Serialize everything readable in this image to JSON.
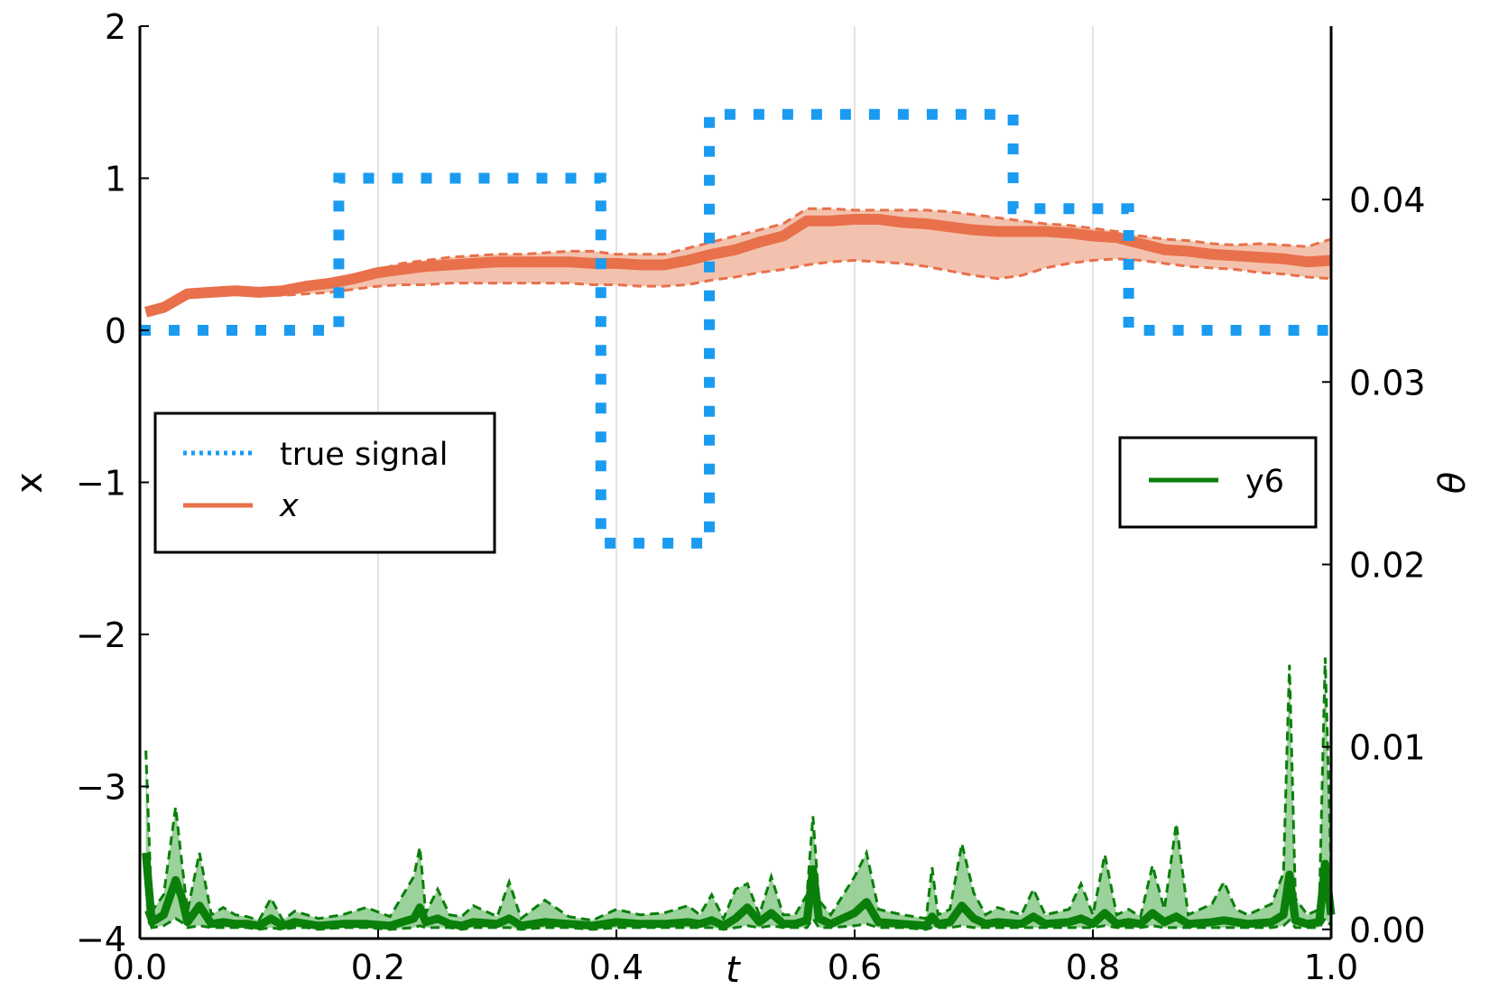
{
  "chart_data": {
    "type": "line",
    "xlabel": "t",
    "ylabel_left": "x",
    "ylabel_right": "θ",
    "xlim": [
      0.0,
      1.0
    ],
    "ylim_left": [
      -4,
      2
    ],
    "ylim_right": [
      -0.0005,
      0.0495
    ],
    "x_ticks": [
      "0.0",
      "0.2",
      "0.4",
      "0.6",
      "0.8",
      "1.0"
    ],
    "y_left_ticks": [
      "2",
      "1",
      "0",
      "−1",
      "−2",
      "−3",
      "−4"
    ],
    "y_right_ticks": [
      "0.04",
      "0.03",
      "0.02",
      "0.01",
      "0.00"
    ],
    "grid": "vertical",
    "colors": {
      "true_signal": "#1a9bf0",
      "x": "#e8704a",
      "x_band": "#f3c2ae",
      "y6": "#0a7f0a",
      "y6_band": "#8ac98a"
    },
    "legend_left": {
      "placement": "middle-left",
      "entries": [
        "true signal",
        "x"
      ]
    },
    "legend_right": {
      "placement": "middle-right",
      "entries": [
        "y6"
      ]
    },
    "true_signal": {
      "name": "true signal",
      "style": "dotted",
      "x": [
        0.0,
        0.167,
        0.167,
        0.387,
        0.387,
        0.478,
        0.478,
        0.733,
        0.733,
        0.83,
        0.83,
        1.0
      ],
      "y": [
        0,
        0,
        1,
        1,
        -1.4,
        -1.4,
        1.42,
        1.42,
        0.8,
        0.8,
        0,
        0
      ]
    },
    "x_series": {
      "name": "x",
      "x": [
        0.005,
        0.02,
        0.04,
        0.06,
        0.08,
        0.1,
        0.12,
        0.14,
        0.16,
        0.18,
        0.2,
        0.22,
        0.24,
        0.26,
        0.28,
        0.3,
        0.32,
        0.34,
        0.36,
        0.38,
        0.4,
        0.42,
        0.44,
        0.46,
        0.48,
        0.5,
        0.52,
        0.54,
        0.56,
        0.58,
        0.6,
        0.62,
        0.64,
        0.66,
        0.68,
        0.7,
        0.72,
        0.74,
        0.76,
        0.78,
        0.8,
        0.82,
        0.84,
        0.86,
        0.88,
        0.9,
        0.92,
        0.94,
        0.96,
        0.98,
        1.0
      ],
      "mean": [
        0.12,
        0.15,
        0.24,
        0.25,
        0.26,
        0.25,
        0.26,
        0.29,
        0.31,
        0.34,
        0.38,
        0.4,
        0.42,
        0.43,
        0.44,
        0.45,
        0.45,
        0.45,
        0.45,
        0.44,
        0.44,
        0.43,
        0.43,
        0.46,
        0.5,
        0.53,
        0.58,
        0.62,
        0.72,
        0.72,
        0.73,
        0.73,
        0.71,
        0.7,
        0.68,
        0.66,
        0.65,
        0.65,
        0.65,
        0.64,
        0.62,
        0.61,
        0.57,
        0.53,
        0.52,
        0.5,
        0.49,
        0.48,
        0.47,
        0.45,
        0.46
      ],
      "upper": [
        0.12,
        0.15,
        0.24,
        0.25,
        0.26,
        0.25,
        0.26,
        0.29,
        0.31,
        0.35,
        0.4,
        0.44,
        0.46,
        0.48,
        0.49,
        0.5,
        0.5,
        0.51,
        0.52,
        0.52,
        0.5,
        0.5,
        0.5,
        0.54,
        0.58,
        0.62,
        0.66,
        0.7,
        0.8,
        0.8,
        0.79,
        0.79,
        0.79,
        0.79,
        0.78,
        0.76,
        0.74,
        0.72,
        0.7,
        0.69,
        0.67,
        0.65,
        0.62,
        0.6,
        0.59,
        0.57,
        0.56,
        0.57,
        0.56,
        0.55,
        0.6
      ],
      "lower": [
        0.12,
        0.15,
        0.23,
        0.24,
        0.24,
        0.23,
        0.23,
        0.24,
        0.25,
        0.27,
        0.29,
        0.3,
        0.3,
        0.31,
        0.31,
        0.31,
        0.31,
        0.31,
        0.31,
        0.3,
        0.3,
        0.29,
        0.29,
        0.3,
        0.33,
        0.35,
        0.38,
        0.4,
        0.43,
        0.45,
        0.46,
        0.45,
        0.44,
        0.42,
        0.39,
        0.36,
        0.34,
        0.36,
        0.41,
        0.44,
        0.46,
        0.47,
        0.46,
        0.44,
        0.42,
        0.41,
        0.4,
        0.38,
        0.37,
        0.35,
        0.34
      ]
    },
    "y6_series": {
      "name": "y6",
      "axis": "right",
      "x": [
        0.005,
        0.01,
        0.02,
        0.03,
        0.035,
        0.04,
        0.05,
        0.06,
        0.07,
        0.08,
        0.09,
        0.1,
        0.11,
        0.12,
        0.13,
        0.14,
        0.15,
        0.17,
        0.19,
        0.21,
        0.23,
        0.235,
        0.24,
        0.25,
        0.26,
        0.27,
        0.28,
        0.3,
        0.31,
        0.32,
        0.34,
        0.36,
        0.38,
        0.4,
        0.42,
        0.44,
        0.46,
        0.47,
        0.48,
        0.49,
        0.5,
        0.51,
        0.52,
        0.53,
        0.54,
        0.55,
        0.56,
        0.565,
        0.57,
        0.58,
        0.6,
        0.61,
        0.62,
        0.64,
        0.66,
        0.665,
        0.67,
        0.68,
        0.69,
        0.7,
        0.71,
        0.72,
        0.74,
        0.75,
        0.76,
        0.78,
        0.79,
        0.8,
        0.81,
        0.82,
        0.83,
        0.84,
        0.85,
        0.86,
        0.87,
        0.88,
        0.9,
        0.91,
        0.92,
        0.93,
        0.95,
        0.96,
        0.965,
        0.97,
        0.98,
        0.99,
        0.995,
        1.0
      ],
      "mean": [
        0.0042,
        0.0004,
        0.0008,
        0.0027,
        0.0018,
        0.0004,
        0.0013,
        0.0003,
        0.0004,
        0.0003,
        0.0003,
        0.0002,
        0.0006,
        0.0002,
        0.0004,
        0.0003,
        0.0002,
        0.0003,
        0.0003,
        0.0002,
        0.0006,
        0.0012,
        0.0004,
        0.0006,
        0.0003,
        0.0002,
        0.0004,
        0.0003,
        0.0006,
        0.0002,
        0.0004,
        0.0003,
        0.0002,
        0.0004,
        0.0003,
        0.0003,
        0.0004,
        0.0003,
        0.0005,
        0.0002,
        0.0006,
        0.0012,
        0.0004,
        0.0009,
        0.0003,
        0.0003,
        0.0005,
        0.0033,
        0.0006,
        0.0003,
        0.0009,
        0.0015,
        0.0004,
        0.0003,
        0.0002,
        0.0007,
        0.0003,
        0.0004,
        0.0013,
        0.0006,
        0.0003,
        0.0004,
        0.0003,
        0.0007,
        0.0003,
        0.0004,
        0.0006,
        0.0003,
        0.0009,
        0.0003,
        0.0004,
        0.0003,
        0.0009,
        0.0004,
        0.0007,
        0.0003,
        0.0004,
        0.0005,
        0.0004,
        0.0003,
        0.0004,
        0.0008,
        0.003,
        0.0005,
        0.0003,
        0.0004,
        0.0036,
        0.0008
      ],
      "upper": [
        0.0098,
        0.001,
        0.0019,
        0.0067,
        0.0038,
        0.001,
        0.0042,
        0.0008,
        0.0012,
        0.0008,
        0.0007,
        0.0005,
        0.0017,
        0.0005,
        0.001,
        0.0008,
        0.0006,
        0.0008,
        0.0012,
        0.0007,
        0.0029,
        0.0045,
        0.0009,
        0.0022,
        0.0008,
        0.0007,
        0.0013,
        0.0007,
        0.0026,
        0.0006,
        0.0016,
        0.0007,
        0.0005,
        0.0011,
        0.0008,
        0.0009,
        0.0013,
        0.0008,
        0.0019,
        0.0006,
        0.0022,
        0.0025,
        0.0008,
        0.0029,
        0.0008,
        0.0008,
        0.0019,
        0.0062,
        0.0016,
        0.0008,
        0.0029,
        0.0042,
        0.0011,
        0.0008,
        0.0006,
        0.0034,
        0.0008,
        0.0011,
        0.0047,
        0.002,
        0.0008,
        0.0012,
        0.0008,
        0.0022,
        0.0008,
        0.0011,
        0.0025,
        0.0008,
        0.0041,
        0.0008,
        0.0011,
        0.0007,
        0.0035,
        0.0011,
        0.0058,
        0.0008,
        0.0014,
        0.0026,
        0.0011,
        0.0008,
        0.0014,
        0.0031,
        0.0145,
        0.0017,
        0.0008,
        0.0011,
        0.0149,
        0.003
      ],
      "lower": [
        0.001,
        0.0001,
        0.0002,
        0.0006,
        0.0004,
        0.0001,
        0.0002,
        0.0001,
        0.0001,
        0.0001,
        0.0001,
        0.0,
        0.0001,
        0.0,
        0.0001,
        0.0001,
        0.0,
        0.0001,
        0.0001,
        0.0,
        0.0001,
        0.0002,
        0.0001,
        0.0001,
        0.0001,
        0.0,
        0.0001,
        0.0001,
        0.0001,
        0.0,
        0.0001,
        0.0001,
        0.0,
        0.0001,
        0.0001,
        0.0001,
        0.0001,
        0.0001,
        0.0001,
        0.0,
        0.0001,
        0.0002,
        0.0001,
        0.0002,
        0.0001,
        0.0001,
        0.0001,
        0.0006,
        0.0001,
        0.0001,
        0.0002,
        0.0003,
        0.0001,
        0.0001,
        0.0,
        0.0001,
        0.0001,
        0.0001,
        0.0002,
        0.0001,
        0.0001,
        0.0001,
        0.0001,
        0.0001,
        0.0001,
        0.0001,
        0.0001,
        0.0001,
        0.0002,
        0.0001,
        0.0001,
        0.0001,
        0.0002,
        0.0001,
        0.0001,
        0.0001,
        0.0001,
        0.0001,
        0.0001,
        0.0001,
        0.0001,
        0.0002,
        0.0005,
        0.0001,
        0.0001,
        0.0001,
        0.0006,
        0.0002
      ]
    }
  }
}
